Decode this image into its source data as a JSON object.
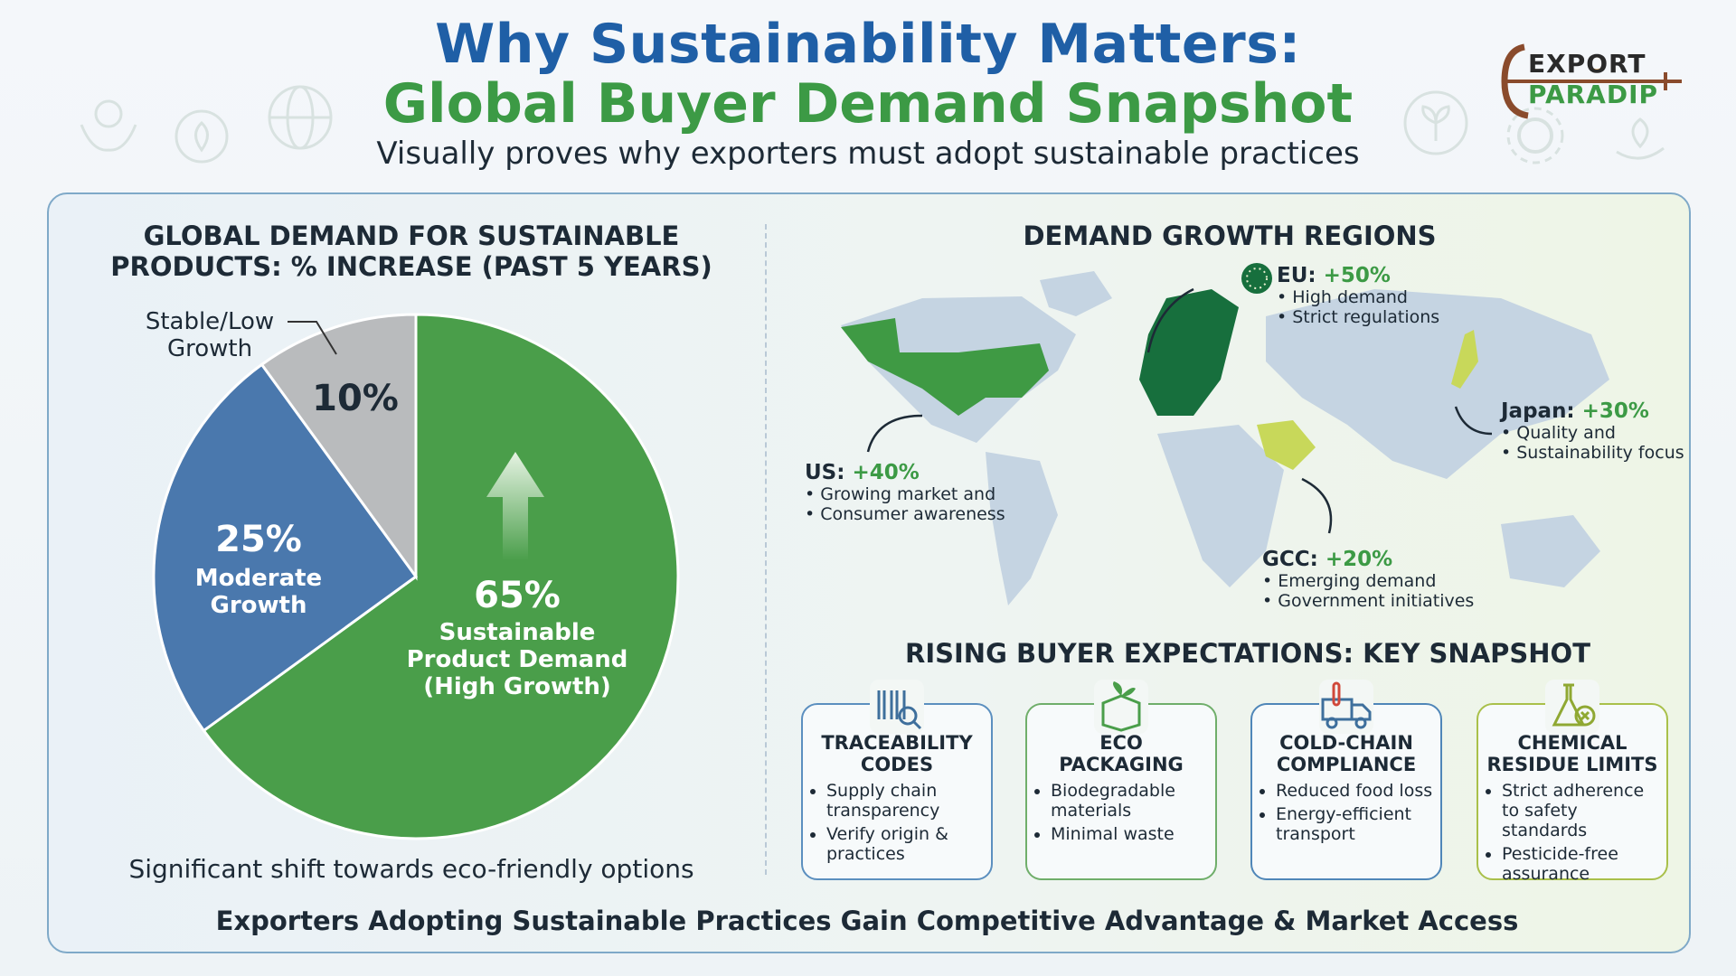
{
  "header": {
    "title_line1": "Why Sustainability Matters:",
    "title_line2": "Global Buyer Demand Snapshot",
    "subtitle": "Visually proves why exporters must adopt sustainable practices"
  },
  "logo": {
    "line1": "EXPORT",
    "line2": "PARADIP"
  },
  "colors": {
    "blue": "#1f5fa6",
    "green": "#3c9a45",
    "pie_green": "#4a9e4a",
    "pie_blue": "#4a78ad",
    "pie_gray": "#b9bbbd"
  },
  "chart_data": {
    "type": "pie",
    "title": "GLOBAL DEMAND FOR SUSTAINABLE PRODUCTS: % INCREASE (PAST 5 YEARS)",
    "title_line1": "GLOBAL DEMAND FOR SUSTAINABLE",
    "title_line2": "PRODUCTS: % INCREASE (PAST 5 YEARS)",
    "slices": [
      {
        "label": "Sustainable Product Demand (High Growth)",
        "label_lines": [
          "Sustainable",
          "Product Demand",
          "(High Growth)"
        ],
        "value": 65,
        "value_label": "65%",
        "color": "#4a9e4a"
      },
      {
        "label": "Moderate Growth",
        "label_lines": [
          "Moderate",
          "Growth"
        ],
        "value": 25,
        "value_label": "25%",
        "color": "#4a78ad"
      },
      {
        "label": "Stable/Low Growth",
        "label_lines": [
          "Stable/Low",
          "Growth"
        ],
        "value": 10,
        "value_label": "10%",
        "color": "#b9bbbd"
      }
    ],
    "caption": "Significant shift towards eco-friendly options"
  },
  "regions": {
    "title": "DEMAND GROWTH REGIONS",
    "eu": {
      "name": "EU:",
      "value": "+50%",
      "notes": [
        "• High demand",
        "• Strict regulations"
      ]
    },
    "us": {
      "name": "US:",
      "value": "+40%",
      "notes": [
        "• Growing market and",
        "• Consumer awareness"
      ]
    },
    "japan": {
      "name": "Japan:",
      "value": "+30%",
      "notes": [
        "• Quality and",
        "• Sustainability focus"
      ]
    },
    "gcc": {
      "name": "GCC:",
      "value": "+20%",
      "notes": [
        "• Emerging demand",
        "• Government initiatives"
      ]
    }
  },
  "expectations": {
    "title": "RISING BUYER EXPECTATIONS: KEY SNAPSHOT",
    "cards": [
      {
        "title1": "TRACEABILITY",
        "title2": "CODES",
        "icon": "barcode-icon",
        "color": "#5b8fbf",
        "items": [
          "Supply chain transparency",
          "Verify origin & practices"
        ]
      },
      {
        "title1": "ECO",
        "title2": "PACKAGING",
        "icon": "eco-box-icon",
        "color": "#6fae6a",
        "items": [
          "Biodegradable materials",
          "Minimal waste"
        ]
      },
      {
        "title1": "COLD-CHAIN",
        "title2": "COMPLIANCE",
        "icon": "cold-truck-icon",
        "color": "#4f86b8",
        "items": [
          "Reduced food loss",
          "Energy-efficient transport"
        ]
      },
      {
        "title1": "CHEMICAL",
        "title2": "RESIDUE LIMITS",
        "icon": "flask-icon",
        "color": "#a9c04a",
        "items": [
          "Strict adherence to safety standards",
          "Pesticide-free assurance"
        ]
      }
    ]
  },
  "footer": "Exporters Adopting Sustainable Practices Gain Competitive Advantage & Market Access"
}
